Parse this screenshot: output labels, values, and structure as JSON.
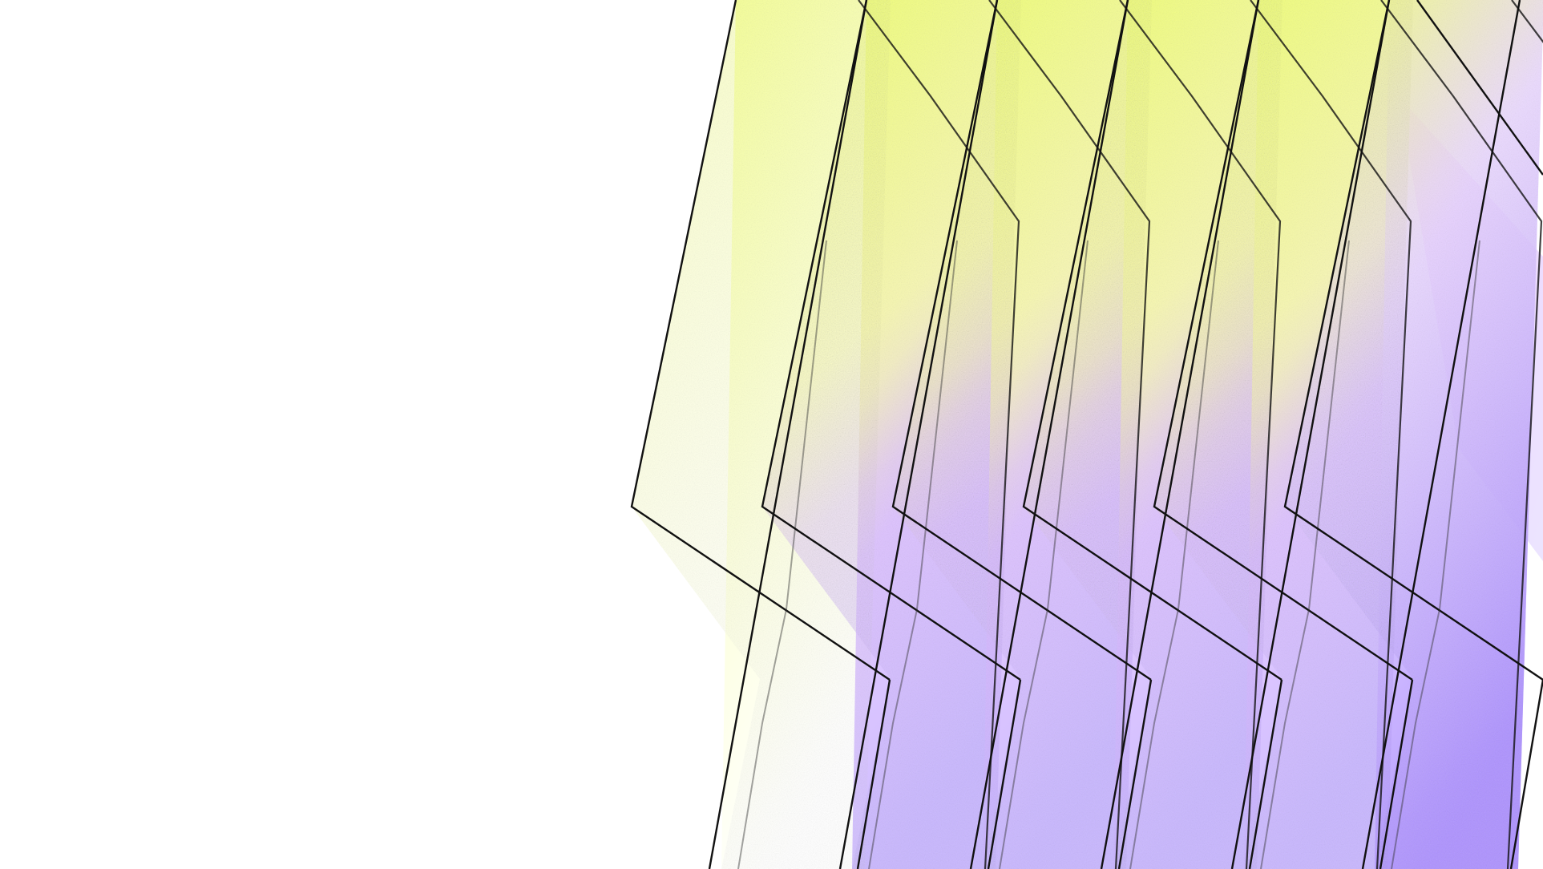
{
  "artwork": {
    "description_free": true,
    "colors": {
      "background": "#ffffff",
      "yellow_bright": "#f3ff6a",
      "yellow_pale": "#fcffd9",
      "lilac": "#c9a6ff",
      "violet": "#a990ff",
      "pink": "#f2b8ff",
      "stroke": "#111111"
    },
    "panel_count": 6,
    "icon": "layered-parallelogram-panels"
  }
}
